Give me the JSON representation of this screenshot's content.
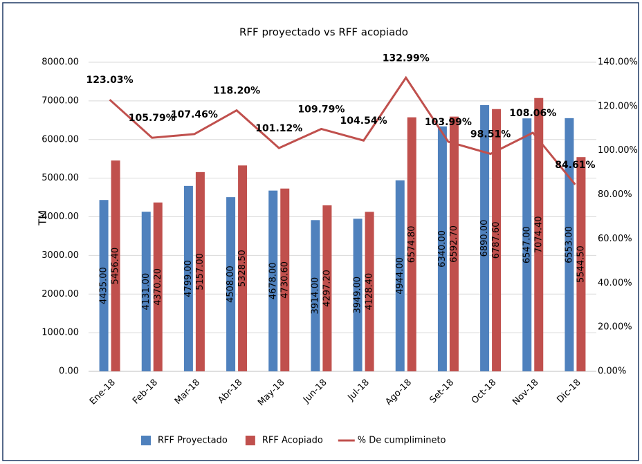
{
  "chart_data": {
    "type": "bar_line",
    "title": "RFF proyectado vs RFF acopiado",
    "y_label": "TM",
    "categories": [
      "Ene-18",
      "Feb-18",
      "Mar-18",
      "Abr-18",
      "May-18",
      "Jun-18",
      "Jul-18",
      "Ago-18",
      "Set-18",
      "Oct-18",
      "Nov-18",
      "Dic-18"
    ],
    "series": [
      {
        "name": "RFF Proyectado",
        "color": "#4f81bd",
        "kind": "bar",
        "values": [
          4435,
          4131,
          4799,
          4508,
          4678,
          3914,
          3949,
          4944,
          6340,
          6890,
          6547,
          6553
        ],
        "value_labels": [
          "4435.00",
          "4131.00",
          "4799.00",
          "4508.00",
          "4678.00",
          "3914.00",
          "3949.00",
          "4944.00",
          "6340.00",
          "6890.00",
          "6547.00",
          "6553.00"
        ]
      },
      {
        "name": "RFF Acopiado",
        "color": "#c0504d",
        "kind": "bar",
        "values": [
          5456.4,
          4370.2,
          5157,
          5328.5,
          4730.6,
          4297.2,
          4128.4,
          6574.8,
          6592.7,
          6787.6,
          7074.4,
          5544.5
        ],
        "value_labels": [
          "5456.40",
          "4370.20",
          "5157.00",
          "5328.50",
          "4730.60",
          "4297.20",
          "4128.40",
          "6574.80",
          "6592.70",
          "6787.60",
          "7074.40",
          "5544.50"
        ]
      },
      {
        "name": "% De cumplimineto",
        "color": "#c0504d",
        "kind": "line",
        "axis": "y2",
        "values": [
          123.03,
          105.79,
          107.46,
          118.2,
          101.12,
          109.79,
          104.54,
          132.99,
          103.99,
          98.51,
          108.06,
          84.61
        ],
        "value_labels": [
          "123.03%",
          "105.79%",
          "107.46%",
          "118.20%",
          "101.12%",
          "109.79%",
          "104.54%",
          "132.99%",
          "103.99%",
          "98.51%",
          "108.06%",
          "84.61%"
        ]
      }
    ],
    "ylim": [
      0,
      8000
    ],
    "yticks": [
      {
        "value": 0,
        "label": "0.00"
      },
      {
        "value": 1000,
        "label": "1000.00"
      },
      {
        "value": 2000,
        "label": "2000.00"
      },
      {
        "value": 3000,
        "label": "3000.00"
      },
      {
        "value": 4000,
        "label": "4000.00"
      },
      {
        "value": 5000,
        "label": "5000.00"
      },
      {
        "value": 6000,
        "label": "6000.00"
      },
      {
        "value": 7000,
        "label": "7000.00"
      },
      {
        "value": 8000,
        "label": "8000.00"
      }
    ],
    "y2lim": [
      0,
      140
    ],
    "y2ticks": [
      {
        "value": 0,
        "label": "0.00%"
      },
      {
        "value": 20,
        "label": "20.00%"
      },
      {
        "value": 40,
        "label": "40.00%"
      },
      {
        "value": 60,
        "label": "60.00%"
      },
      {
        "value": 80,
        "label": "80.00%"
      },
      {
        "value": 100,
        "label": "100.00%"
      },
      {
        "value": 120,
        "label": "120.00%"
      },
      {
        "value": 140,
        "label": "140.00%"
      }
    ],
    "grid": true,
    "legend": "bottom"
  }
}
